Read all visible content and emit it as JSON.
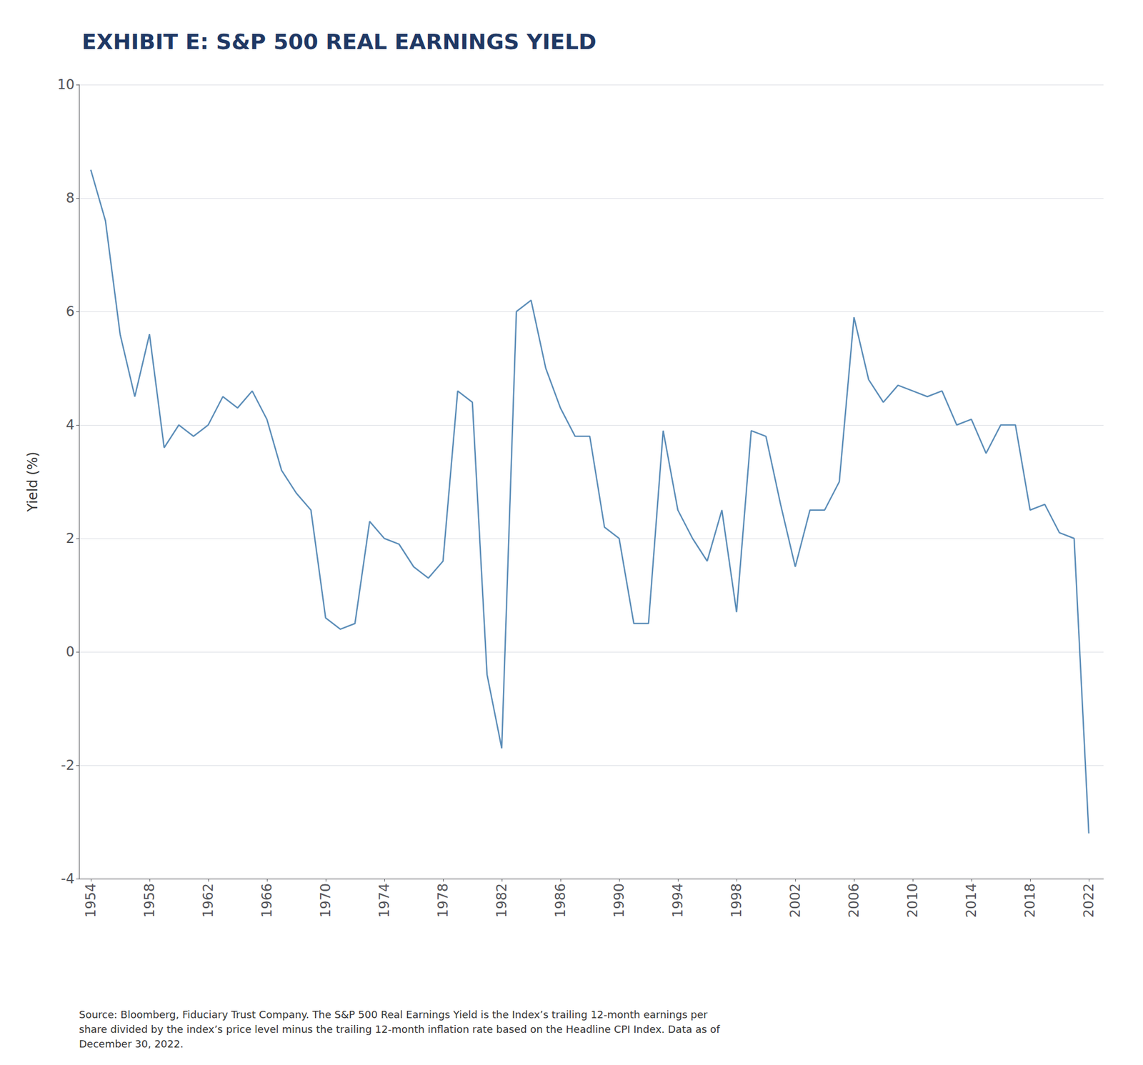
{
  "chart_data": {
    "type": "line",
    "title": "EXHIBIT E: S&P 500 REAL EARNINGS YIELD",
    "ylabel": "Yield (%)",
    "source": "Source: Bloomberg, Fiduciary Trust Company. The S&P 500 Real Earnings Yield is the Index’s trailing 12-month earnings per\nshare divided by the index’s price level minus the trailing 12-month inflation rate based on the Headline CPI Index. Data as of\nDecember 30, 2022.",
    "color": "#5B8DB8",
    "x": [
      1954,
      1955,
      1956,
      1957,
      1958,
      1959,
      1960,
      1961,
      1962,
      1963,
      1964,
      1965,
      1966,
      1967,
      1968,
      1969,
      1970,
      1971,
      1972,
      1973,
      1974,
      1975,
      1976,
      1977,
      1978,
      1979,
      1980,
      1981,
      1982,
      1983,
      1984,
      1985,
      1986,
      1987,
      1988,
      1989,
      1990,
      1991,
      1992,
      1993,
      1994,
      1995,
      1996,
      1997,
      1998,
      1999,
      2000,
      2001,
      2002,
      2003,
      2004,
      2005,
      2006,
      2007,
      2008,
      2009,
      2010,
      2011,
      2012,
      2013,
      2014,
      2015,
      2016,
      2017,
      2018,
      2019,
      2020,
      2021,
      2022
    ],
    "values": [
      8.5,
      7.6,
      5.6,
      4.5,
      5.6,
      3.6,
      4.0,
      3.8,
      4.0,
      4.5,
      4.3,
      4.6,
      4.1,
      3.2,
      2.8,
      2.5,
      0.6,
      0.4,
      0.5,
      2.3,
      2.0,
      1.9,
      1.5,
      1.3,
      1.6,
      4.6,
      4.4,
      -0.4,
      -1.7,
      6.0,
      6.2,
      5.0,
      4.3,
      3.8,
      3.8,
      2.2,
      2.0,
      0.5,
      0.5,
      3.9,
      2.5,
      2.0,
      1.6,
      2.5,
      0.7,
      3.9,
      3.8,
      2.6,
      1.5,
      2.5,
      2.5,
      3.0,
      5.9,
      4.8,
      4.4,
      4.7,
      4.6,
      4.5,
      4.6,
      4.0,
      4.1,
      3.5,
      4.0,
      4.0,
      2.5,
      2.6,
      2.1,
      2.0,
      -3.2
    ],
    "xlim": [
      1953.2,
      2023.0
    ],
    "xticks": [
      1954,
      1958,
      1962,
      1966,
      1970,
      1974,
      1978,
      1982,
      1986,
      1990,
      1994,
      1998,
      2002,
      2006,
      2010,
      2014,
      2018,
      2022
    ],
    "ylim": [
      -4,
      10
    ],
    "yticks": [
      -4,
      -2,
      0,
      2,
      4,
      6,
      8,
      10
    ],
    "grid": true
  }
}
